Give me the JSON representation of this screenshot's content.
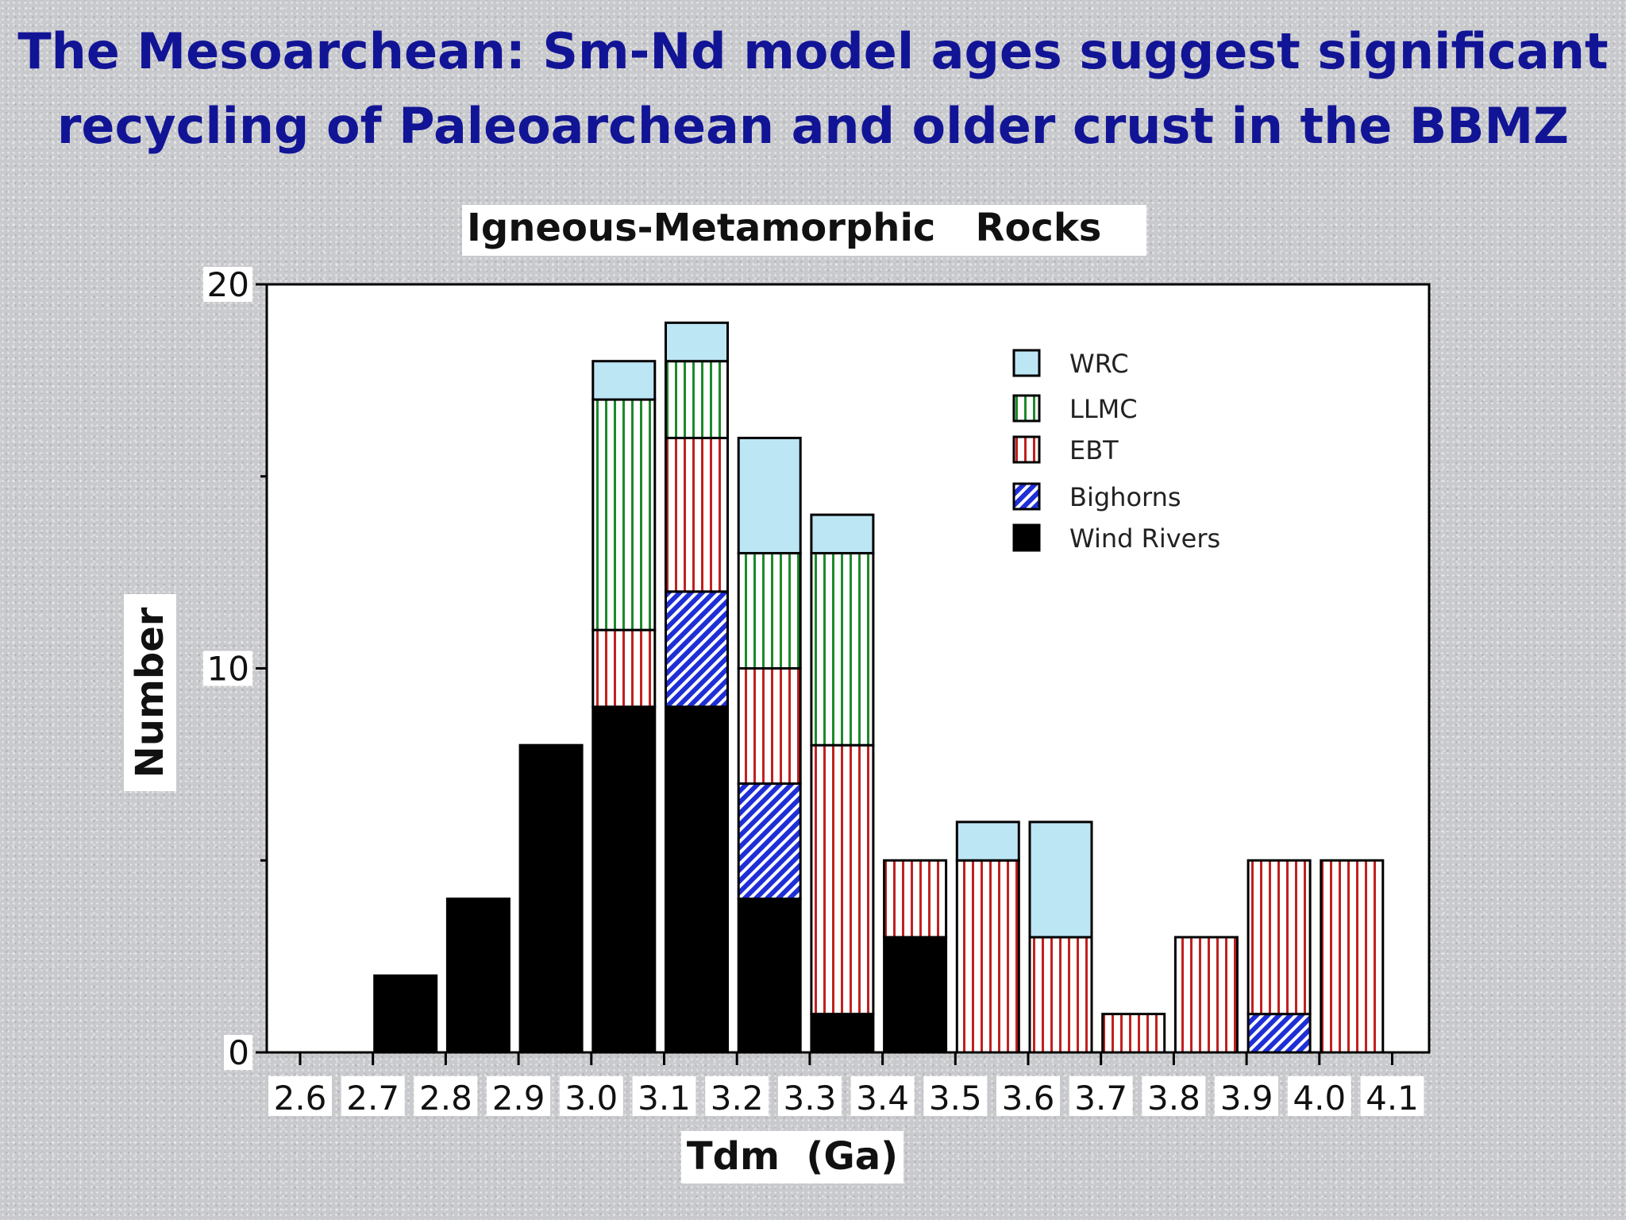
{
  "slide": {
    "title_line1": "The Mesoarchean: Sm-Nd model ages suggest significant",
    "title_line2": "recycling of Paleoarchean and older crust in the BBMZ"
  },
  "chart_data": {
    "type": "bar",
    "stacked": true,
    "title": "Igneous-Metamorphic   Rocks",
    "xlabel": "Tdm  (Ga)",
    "ylabel": "Number",
    "ylim": [
      0,
      20
    ],
    "y_ticks": [
      "0",
      "10",
      "20"
    ],
    "categories": [
      "2.6",
      "2.7",
      "2.8",
      "2.9",
      "3.0",
      "3.1",
      "3.2",
      "3.3",
      "3.4",
      "3.5",
      "3.6",
      "3.7",
      "3.8",
      "3.9",
      "4.0",
      "4.1"
    ],
    "legend_position": "top-right",
    "series": [
      {
        "name": "Wind Rivers",
        "fill": "solid",
        "color": "#000000",
        "values": [
          0,
          2,
          4,
          8,
          9,
          9,
          4,
          1,
          3,
          0,
          0,
          0,
          0,
          0,
          0,
          0
        ]
      },
      {
        "name": "Bighorns",
        "fill": "diagonal",
        "color": "#1e2fd6",
        "values": [
          0,
          0,
          0,
          0,
          0,
          3,
          3,
          0,
          0,
          0,
          0,
          0,
          0,
          1,
          0,
          0
        ]
      },
      {
        "name": "EBT",
        "fill": "vertical-stripes",
        "color": "#c0211e",
        "values": [
          0,
          0,
          0,
          0,
          2,
          4,
          3,
          7,
          2,
          5,
          3,
          1,
          3,
          4,
          5,
          0
        ]
      },
      {
        "name": "LLMC",
        "fill": "vertical-stripes",
        "color": "#1d8a2a",
        "values": [
          0,
          0,
          0,
          0,
          6,
          2,
          3,
          5,
          0,
          0,
          0,
          0,
          0,
          0,
          0,
          0
        ]
      },
      {
        "name": "WRC",
        "fill": "solid",
        "color": "#bde6f5",
        "values": [
          0,
          0,
          0,
          0,
          1,
          1,
          3,
          1,
          0,
          1,
          3,
          0,
          0,
          0,
          0,
          0
        ]
      }
    ],
    "legend_order": [
      "WRC",
      "LLMC",
      "EBT",
      "Bighorns",
      "Wind Rivers"
    ]
  }
}
